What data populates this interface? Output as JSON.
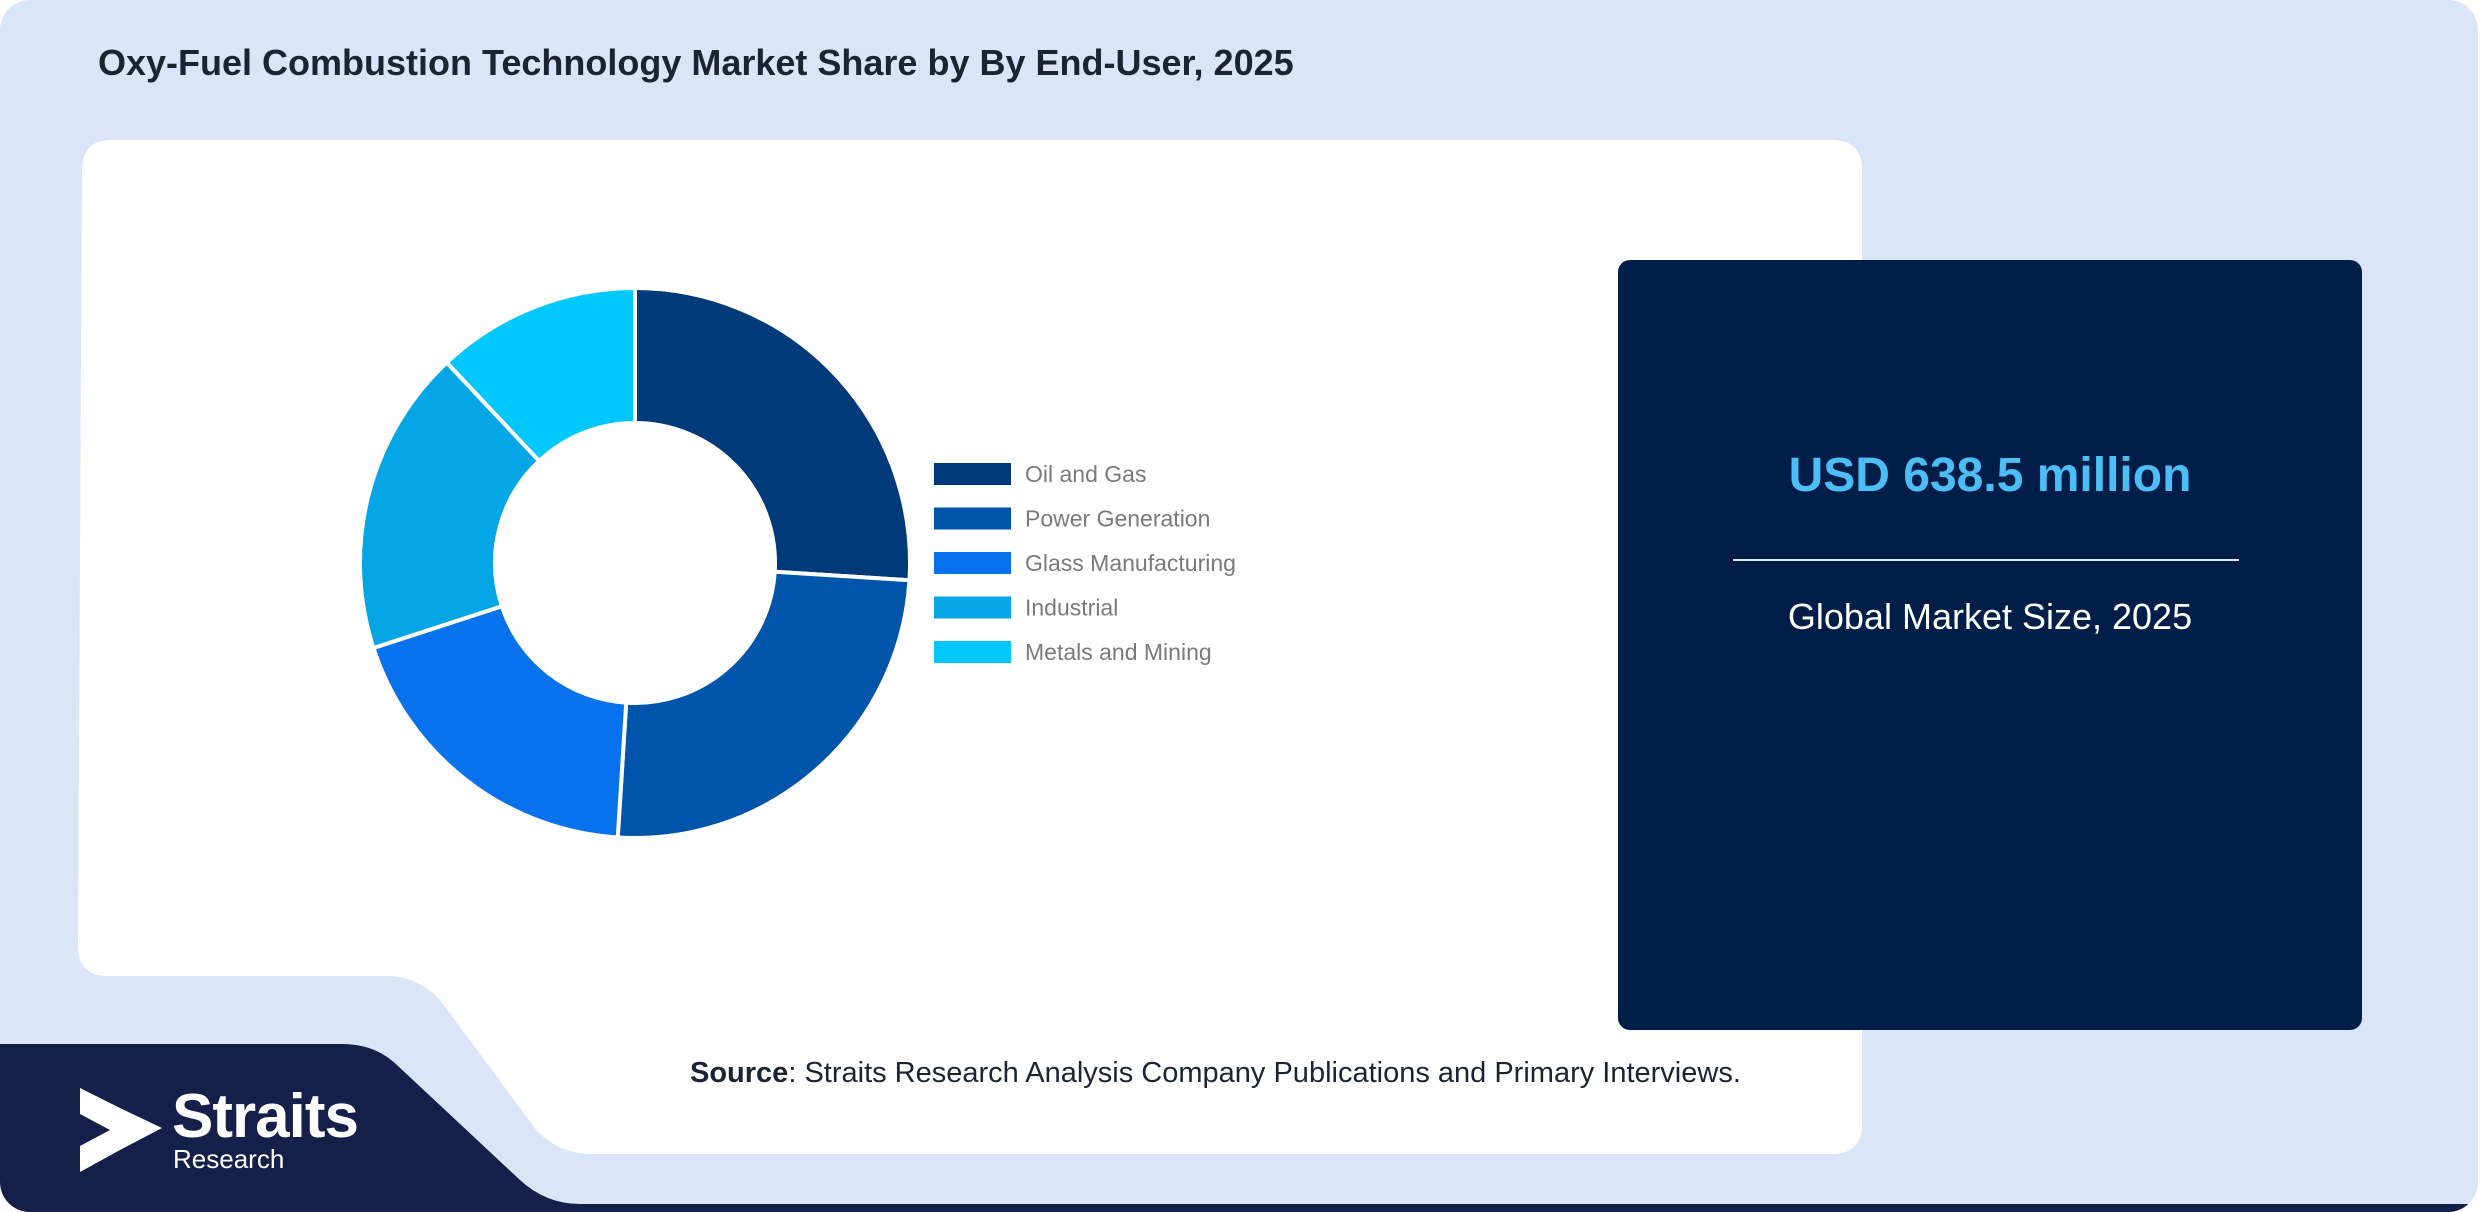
{
  "page": {
    "title": "Oxy-Fuel Combustion Technology Market Share by By End-User, 2025"
  },
  "chart_data": {
    "type": "pie",
    "donut": true,
    "categories": [
      "Oil and Gas",
      "Power Generation",
      "Glass Manufacturing",
      "Industrial",
      "Metals and Mining"
    ],
    "values": [
      26,
      25,
      19,
      18,
      12
    ],
    "colors": [
      "#003a78",
      "#0055aa",
      "#0772ec",
      "#04a6e6",
      "#00c8fc"
    ],
    "legend_position": "right",
    "title": "",
    "xlabel": "",
    "ylabel": ""
  },
  "stat": {
    "value": "USD 638.5 million",
    "caption": "Global Market Size, 2025"
  },
  "source": {
    "label": "Source",
    "text": ": Straits Research Analysis Company Publications and Primary Interviews."
  },
  "brand": {
    "name": "Straits",
    "sub": "Research",
    "icon": "straits-arrow-logo-icon"
  },
  "colors": {
    "background": "#dae6f8",
    "navy": "#001e48",
    "accent": "#4cbdf5"
  }
}
